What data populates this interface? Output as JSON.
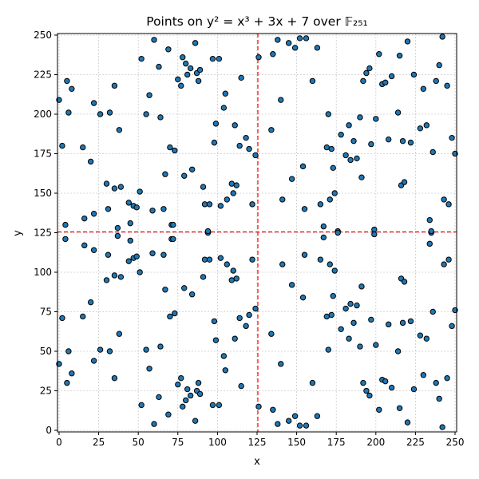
{
  "chart_data": {
    "type": "scatter",
    "title": "Points on y² = x³ + 3x + 7 over 𝔽₂₅₁",
    "xlabel": "x",
    "ylabel": "y",
    "xlim": [
      -1,
      251
    ],
    "ylim": [
      -1,
      251
    ],
    "xticks": [
      0,
      25,
      50,
      75,
      100,
      125,
      150,
      175,
      200,
      225,
      250
    ],
    "yticks": [
      0,
      25,
      50,
      75,
      100,
      125,
      150,
      175,
      200,
      225,
      250
    ],
    "grid": true,
    "reference_lines": {
      "x": 125.5,
      "y": 125.5,
      "color": "#ff0000",
      "style": "dashed"
    },
    "marker_color": "#1f77b4",
    "marker_edge": "#000000",
    "points": [
      [
        0,
        209
      ],
      [
        0,
        42
      ],
      [
        2,
        71
      ],
      [
        2,
        180
      ],
      [
        4,
        130
      ],
      [
        4,
        121
      ],
      [
        5,
        30
      ],
      [
        5,
        221
      ],
      [
        6,
        50
      ],
      [
        6,
        201
      ],
      [
        8,
        216
      ],
      [
        8,
        36
      ],
      [
        15,
        179
      ],
      [
        15,
        72
      ],
      [
        16,
        117
      ],
      [
        16,
        134
      ],
      [
        20,
        170
      ],
      [
        20,
        81
      ],
      [
        22,
        207
      ],
      [
        22,
        44
      ],
      [
        22,
        137
      ],
      [
        22,
        114
      ],
      [
        26,
        200
      ],
      [
        26,
        51
      ],
      [
        30,
        95
      ],
      [
        30,
        156
      ],
      [
        31,
        140
      ],
      [
        31,
        111
      ],
      [
        32,
        201
      ],
      [
        32,
        50
      ],
      [
        35,
        218
      ],
      [
        35,
        153
      ],
      [
        35,
        98
      ],
      [
        35,
        33
      ],
      [
        37,
        128
      ],
      [
        37,
        123
      ],
      [
        38,
        61
      ],
      [
        38,
        190
      ],
      [
        39,
        154
      ],
      [
        39,
        97
      ],
      [
        44,
        107
      ],
      [
        44,
        144
      ],
      [
        45,
        131
      ],
      [
        45,
        120
      ],
      [
        47,
        142
      ],
      [
        47,
        109
      ],
      [
        49,
        141
      ],
      [
        49,
        110
      ],
      [
        51,
        151
      ],
      [
        51,
        100
      ],
      [
        52,
        16
      ],
      [
        52,
        235
      ],
      [
        55,
        200
      ],
      [
        55,
        51
      ],
      [
        57,
        212
      ],
      [
        57,
        39
      ],
      [
        59,
        139
      ],
      [
        59,
        112
      ],
      [
        60,
        247
      ],
      [
        60,
        4
      ],
      [
        63,
        230
      ],
      [
        63,
        21
      ],
      [
        64,
        198
      ],
      [
        64,
        53
      ],
      [
        66,
        140
      ],
      [
        66,
        111
      ],
      [
        67,
        162
      ],
      [
        67,
        89
      ],
      [
        69,
        241
      ],
      [
        69,
        10
      ],
      [
        70,
        72
      ],
      [
        70,
        179
      ],
      [
        71,
        121
      ],
      [
        71,
        130
      ],
      [
        72,
        121
      ],
      [
        72,
        130
      ],
      [
        73,
        177
      ],
      [
        73,
        74
      ],
      [
        75,
        222
      ],
      [
        75,
        29
      ],
      [
        77,
        218
      ],
      [
        77,
        33
      ],
      [
        78,
        236
      ],
      [
        78,
        15
      ],
      [
        79,
        161
      ],
      [
        79,
        90
      ],
      [
        80,
        232
      ],
      [
        80,
        19
      ],
      [
        81,
        225
      ],
      [
        81,
        26
      ],
      [
        83,
        229
      ],
      [
        83,
        22
      ],
      [
        84,
        165
      ],
      [
        84,
        86
      ],
      [
        86,
        245
      ],
      [
        86,
        6
      ],
      [
        87,
        226
      ],
      [
        87,
        25
      ],
      [
        88,
        221
      ],
      [
        88,
        30
      ],
      [
        89,
        23
      ],
      [
        89,
        228
      ],
      [
        91,
        154
      ],
      [
        91,
        97
      ],
      [
        92,
        143
      ],
      [
        92,
        108
      ],
      [
        94,
        125
      ],
      [
        94,
        126
      ],
      [
        95,
        143
      ],
      [
        95,
        108
      ],
      [
        97,
        235
      ],
      [
        97,
        16
      ],
      [
        98,
        182
      ],
      [
        98,
        69
      ],
      [
        99,
        194
      ],
      [
        99,
        57
      ],
      [
        101,
        235
      ],
      [
        101,
        16
      ],
      [
        102,
        142
      ],
      [
        102,
        109
      ],
      [
        104,
        204
      ],
      [
        104,
        47
      ],
      [
        105,
        213
      ],
      [
        105,
        38
      ],
      [
        106,
        146
      ],
      [
        106,
        105
      ],
      [
        109,
        156
      ],
      [
        109,
        95
      ],
      [
        110,
        150
      ],
      [
        110,
        101
      ],
      [
        111,
        193
      ],
      [
        111,
        58
      ],
      [
        112,
        155
      ],
      [
        112,
        96
      ],
      [
        114,
        180
      ],
      [
        114,
        71
      ],
      [
        115,
        223
      ],
      [
        115,
        28
      ],
      [
        118,
        185
      ],
      [
        118,
        66
      ],
      [
        120,
        178
      ],
      [
        120,
        73
      ],
      [
        122,
        143
      ],
      [
        122,
        108
      ],
      [
        124,
        174
      ],
      [
        124,
        77
      ],
      [
        126,
        236
      ],
      [
        126,
        15
      ],
      [
        134,
        190
      ],
      [
        134,
        61
      ],
      [
        135,
        238
      ],
      [
        135,
        13
      ],
      [
        138,
        247
      ],
      [
        138,
        4
      ],
      [
        140,
        209
      ],
      [
        140,
        42
      ],
      [
        141,
        146
      ],
      [
        141,
        105
      ],
      [
        145,
        245
      ],
      [
        145,
        6
      ],
      [
        147,
        159
      ],
      [
        147,
        92
      ],
      [
        149,
        242
      ],
      [
        149,
        9
      ],
      [
        152,
        248
      ],
      [
        152,
        3
      ],
      [
        154,
        167
      ],
      [
        154,
        84
      ],
      [
        155,
        140
      ],
      [
        155,
        111
      ],
      [
        156,
        248
      ],
      [
        156,
        3
      ],
      [
        160,
        221
      ],
      [
        160,
        30
      ],
      [
        163,
        242
      ],
      [
        163,
        9
      ],
      [
        165,
        143
      ],
      [
        165,
        108
      ],
      [
        167,
        129
      ],
      [
        167,
        122
      ],
      [
        169,
        179
      ],
      [
        169,
        72
      ],
      [
        170,
        200
      ],
      [
        170,
        51
      ],
      [
        171,
        146
      ],
      [
        171,
        105
      ],
      [
        172,
        178
      ],
      [
        172,
        73
      ],
      [
        173,
        166
      ],
      [
        173,
        85
      ],
      [
        174,
        150
      ],
      [
        174,
        101
      ],
      [
        176,
        126
      ],
      [
        176,
        125
      ],
      [
        178,
        187
      ],
      [
        178,
        64
      ],
      [
        181,
        174
      ],
      [
        181,
        77
      ],
      [
        183,
        193
      ],
      [
        183,
        58
      ],
      [
        184,
        171
      ],
      [
        184,
        80
      ],
      [
        186,
        183
      ],
      [
        186,
        68
      ],
      [
        188,
        172
      ],
      [
        188,
        79
      ],
      [
        190,
        198
      ],
      [
        190,
        53
      ],
      [
        191,
        160
      ],
      [
        191,
        91
      ],
      [
        192,
        221
      ],
      [
        192,
        30
      ],
      [
        194,
        226
      ],
      [
        194,
        25
      ],
      [
        196,
        229
      ],
      [
        196,
        22
      ],
      [
        197,
        70
      ],
      [
        197,
        181
      ],
      [
        199,
        127
      ],
      [
        199,
        124
      ],
      [
        200,
        197
      ],
      [
        200,
        54
      ],
      [
        202,
        238
      ],
      [
        202,
        13
      ],
      [
        204,
        219
      ],
      [
        204,
        32
      ],
      [
        206,
        220
      ],
      [
        206,
        31
      ],
      [
        208,
        184
      ],
      [
        208,
        67
      ],
      [
        210,
        224
      ],
      [
        210,
        27
      ],
      [
        214,
        201
      ],
      [
        214,
        50
      ],
      [
        215,
        237
      ],
      [
        215,
        14
      ],
      [
        216,
        155
      ],
      [
        216,
        96
      ],
      [
        217,
        183
      ],
      [
        217,
        68
      ],
      [
        218,
        157
      ],
      [
        218,
        94
      ],
      [
        220,
        246
      ],
      [
        220,
        5
      ],
      [
        222,
        182
      ],
      [
        222,
        69
      ],
      [
        224,
        225
      ],
      [
        224,
        26
      ],
      [
        228,
        191
      ],
      [
        228,
        60
      ],
      [
        230,
        216
      ],
      [
        230,
        35
      ],
      [
        232,
        193
      ],
      [
        232,
        58
      ],
      [
        234,
        133
      ],
      [
        234,
        118
      ],
      [
        235,
        125
      ],
      [
        235,
        126
      ],
      [
        236,
        176
      ],
      [
        236,
        75
      ],
      [
        238,
        221
      ],
      [
        238,
        30
      ],
      [
        240,
        231
      ],
      [
        240,
        20
      ],
      [
        242,
        249
      ],
      [
        242,
        2
      ],
      [
        243,
        146
      ],
      [
        243,
        105
      ],
      [
        245,
        218
      ],
      [
        245,
        33
      ],
      [
        246,
        143
      ],
      [
        246,
        108
      ],
      [
        248,
        185
      ],
      [
        248,
        66
      ],
      [
        250,
        175
      ],
      [
        250,
        76
      ]
    ]
  }
}
